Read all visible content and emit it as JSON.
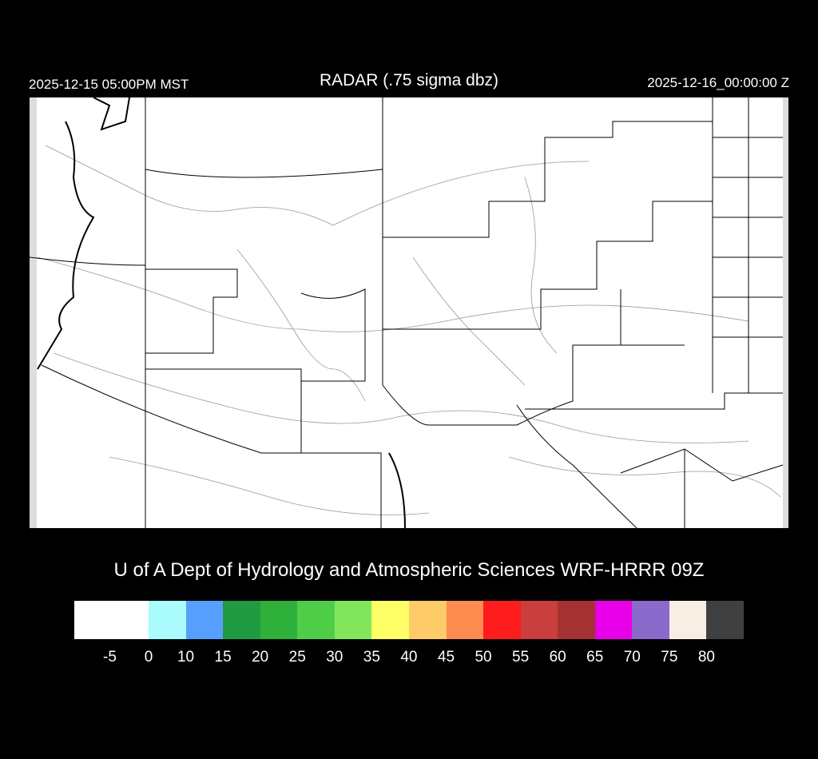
{
  "header": {
    "local_time": "2025-12-15 05:00PM MST",
    "title": "RADAR (.75 sigma dbz)",
    "valid_time": "2025-12-16_00:00:00 Z"
  },
  "credit": "U of A Dept of Hydrology and Atmospheric Sciences WRF-HRRR 09Z",
  "colorbar": {
    "labels": [
      "-5",
      "0",
      "10",
      "15",
      "20",
      "25",
      "30",
      "35",
      "40",
      "45",
      "50",
      "55",
      "60",
      "65",
      "70",
      "75",
      "80"
    ],
    "colors": [
      "#ffffff",
      "#aafcfc",
      "#569ffe",
      "#209b41",
      "#2fb03a",
      "#4fcd49",
      "#82e65d",
      "#fefe66",
      "#fecb69",
      "#fe8b50",
      "#fe1c1c",
      "#cb3e3e",
      "#a43232",
      "#e800e8",
      "#8a6acb",
      "#f8eee4",
      "#404040"
    ]
  },
  "map": {
    "radar_echoes": "none",
    "background": "#ffffff"
  }
}
